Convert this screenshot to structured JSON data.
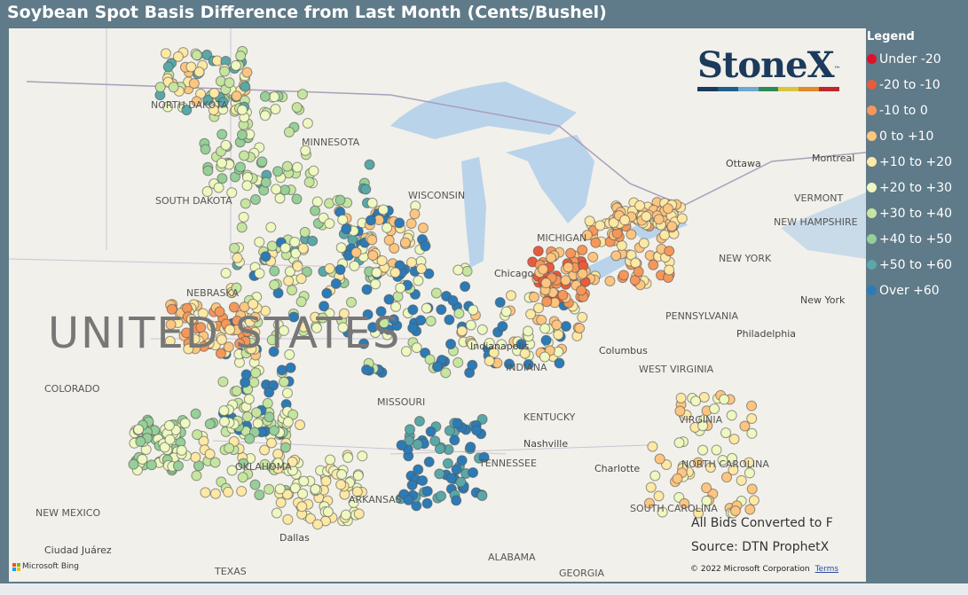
{
  "title": "Soybean Spot Basis Difference from Last Month (Cents/Bushel)",
  "legend": {
    "title": "Legend",
    "items": [
      {
        "label": "Under -20",
        "color": "#e0102a"
      },
      {
        "label": "-20 to -10",
        "color": "#e85b3d"
      },
      {
        "label": "-10 to 0",
        "color": "#f6975a"
      },
      {
        "label": "0 to +10",
        "color": "#fdc57f"
      },
      {
        "label": "+10 to +20",
        "color": "#fde8a4"
      },
      {
        "label": "+20 to +30",
        "color": "#eef8c0"
      },
      {
        "label": "+30 to +40",
        "color": "#c6e6a0"
      },
      {
        "label": "+40 to +50",
        "color": "#96cf98"
      },
      {
        "label": "+50 to +60",
        "color": "#5aa7a8"
      },
      {
        "label": "Over +60",
        "color": "#2c7bb6"
      }
    ]
  },
  "logo": {
    "text": "StoneX",
    "tm": "™",
    "colors": [
      "#1b3a5c",
      "#1f5f8b",
      "#6fa8cf",
      "#2e8b57",
      "#d8c640",
      "#e08a2a",
      "#c0272d"
    ]
  },
  "notes": {
    "line1": "All Bids Converted to F",
    "line2": "Source: DTN ProphetX"
  },
  "copyright": "© 2022 Microsoft Corporation",
  "terms": "Terms",
  "bing": "Microsoft Bing",
  "map": {
    "big_label": "UNITED STATES",
    "states": [
      "NORTH DAKOTA",
      "MINNESOTA",
      "SOUTH DAKOTA",
      "WISCONSIN",
      "MICHIGAN",
      "NEBRASKA",
      "COLORADO",
      "MISSOURI",
      "INDIANA",
      "NEW YORK",
      "PENNSYLVANIA",
      "WEST VIRGINIA",
      "VIRGINIA",
      "KENTUCKY",
      "TENNESSEE",
      "NORTH CAROLINA",
      "SOUTH CAROLINA",
      "OKLAHOMA",
      "ARKANSAS",
      "NEW MEXICO",
      "ALABAMA",
      "GEORGIA",
      "VERMONT",
      "NEW HAMPSHIRE",
      "TEXAS"
    ],
    "cities": [
      "Ottawa",
      "Montreal",
      "Chicago",
      "Columbus",
      "New York",
      "Philadelphia",
      "Nashville",
      "Charlotte",
      "Dallas",
      "Ciudad Juárez",
      "Indianapolis"
    ]
  }
}
